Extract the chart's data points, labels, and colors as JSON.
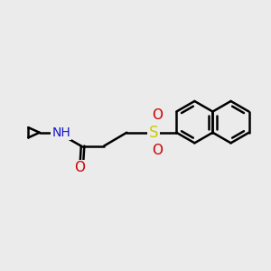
{
  "background_color": "#EBEBEB",
  "bond_color": "#000000",
  "bond_width": 1.8,
  "N_color": "#1414CC",
  "O_color": "#CC0000",
  "S_color": "#CCCC00",
  "H_color": "#888888",
  "fig_width": 3.0,
  "fig_height": 3.0,
  "xlim": [
    0,
    10
  ],
  "ylim": [
    0,
    10
  ]
}
